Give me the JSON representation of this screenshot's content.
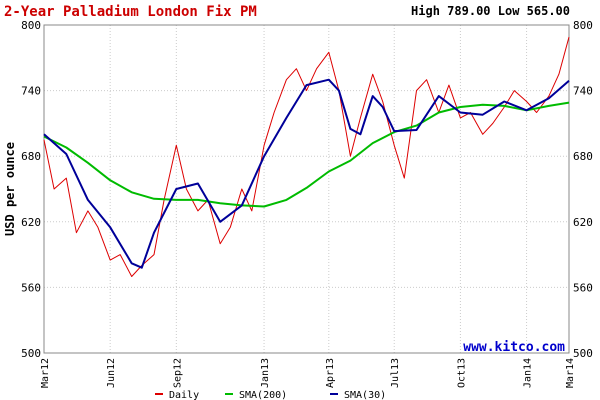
{
  "header": {
    "title": "2-Year Palladium London Fix PM",
    "stats": "High 789.00 Low 565.00"
  },
  "watermark": "www.kitco.com",
  "colors": {
    "title": "#cc0000",
    "daily": "#dd0000",
    "sma200": "#00bb00",
    "sma30": "#000099",
    "watermark": "#0000cc",
    "grid": "#cccccc",
    "frame": "#888888",
    "background": "#ffffff"
  },
  "chart_data": {
    "type": "line",
    "title": "2-Year Palladium London Fix PM",
    "ylabel": "USD per ounce",
    "xlabel": "",
    "ylim": [
      500,
      800
    ],
    "xlim": [
      "2012-03-01",
      "2014-03-01"
    ],
    "yticks": [
      500,
      560,
      620,
      680,
      740,
      800
    ],
    "xticks": [
      {
        "label": "Mar12",
        "date": "2012-03-01"
      },
      {
        "label": "Jun12",
        "date": "2012-06-01"
      },
      {
        "label": "Sep12",
        "date": "2012-09-01"
      },
      {
        "label": "Jan13",
        "date": "2013-01-01"
      },
      {
        "label": "Apr13",
        "date": "2013-04-01"
      },
      {
        "label": "Jul13",
        "date": "2013-07-01"
      },
      {
        "label": "Oct13",
        "date": "2013-10-01"
      },
      {
        "label": "Jan14",
        "date": "2014-01-01"
      },
      {
        "label": "Mar14",
        "date": "2014-03-01"
      }
    ],
    "grid": true,
    "legend_position": "bottom",
    "series": [
      {
        "name": "Daily",
        "color": "#dd0000",
        "x": [
          "2012-03-01",
          "2012-03-15",
          "2012-04-01",
          "2012-04-15",
          "2012-05-01",
          "2012-05-15",
          "2012-06-01",
          "2012-06-15",
          "2012-07-01",
          "2012-07-15",
          "2012-08-01",
          "2012-08-15",
          "2012-09-01",
          "2012-09-15",
          "2012-10-01",
          "2012-10-15",
          "2012-11-01",
          "2012-11-15",
          "2012-12-01",
          "2012-12-15",
          "2013-01-01",
          "2013-01-15",
          "2013-02-01",
          "2013-02-15",
          "2013-03-01",
          "2013-03-15",
          "2013-04-01",
          "2013-04-15",
          "2013-05-01",
          "2013-05-15",
          "2013-06-01",
          "2013-06-15",
          "2013-07-01",
          "2013-07-15",
          "2013-08-01",
          "2013-08-15",
          "2013-09-01",
          "2013-09-15",
          "2013-10-01",
          "2013-10-15",
          "2013-11-01",
          "2013-11-15",
          "2013-12-01",
          "2013-12-15",
          "2014-01-01",
          "2014-01-15",
          "2014-02-01",
          "2014-02-15",
          "2014-03-01"
        ],
        "y": [
          695,
          650,
          660,
          610,
          630,
          615,
          585,
          590,
          570,
          580,
          590,
          640,
          690,
          650,
          630,
          640,
          600,
          615,
          650,
          630,
          690,
          720,
          750,
          760,
          740,
          760,
          775,
          740,
          680,
          715,
          755,
          730,
          690,
          660,
          740,
          750,
          720,
          745,
          715,
          720,
          700,
          710,
          725,
          740,
          730,
          720,
          735,
          755,
          789
        ]
      },
      {
        "name": "SMA(200)",
        "color": "#00bb00",
        "x": [
          "2012-03-01",
          "2012-04-01",
          "2012-05-01",
          "2012-06-01",
          "2012-07-01",
          "2012-08-01",
          "2012-09-01",
          "2012-10-01",
          "2012-11-01",
          "2012-12-01",
          "2013-01-01",
          "2013-02-01",
          "2013-03-01",
          "2013-04-01",
          "2013-05-01",
          "2013-06-01",
          "2013-07-01",
          "2013-08-01",
          "2013-09-01",
          "2013-10-01",
          "2013-11-01",
          "2013-12-01",
          "2014-01-01",
          "2014-02-01",
          "2014-03-01"
        ],
        "y": [
          698,
          688,
          674,
          658,
          647,
          641,
          640,
          640,
          637,
          635,
          634,
          640,
          651,
          666,
          676,
          692,
          702,
          708,
          720,
          725,
          727,
          726,
          722,
          726,
          729
        ]
      },
      {
        "name": "SMA(30)",
        "color": "#000099",
        "x": [
          "2012-03-01",
          "2012-04-01",
          "2012-05-01",
          "2012-06-01",
          "2012-07-01",
          "2012-07-15",
          "2012-08-01",
          "2012-09-01",
          "2012-10-01",
          "2012-11-01",
          "2012-12-01",
          "2013-01-01",
          "2013-02-01",
          "2013-03-01",
          "2013-04-01",
          "2013-04-15",
          "2013-05-01",
          "2013-05-15",
          "2013-06-01",
          "2013-06-15",
          "2013-07-01",
          "2013-08-01",
          "2013-09-01",
          "2013-10-01",
          "2013-11-01",
          "2013-12-01",
          "2014-01-01",
          "2014-02-01",
          "2014-03-01"
        ],
        "y": [
          700,
          682,
          640,
          615,
          582,
          578,
          610,
          650,
          655,
          620,
          635,
          680,
          715,
          745,
          750,
          740,
          705,
          700,
          735,
          725,
          703,
          704,
          735,
          720,
          718,
          730,
          722,
          733,
          749
        ]
      }
    ]
  }
}
